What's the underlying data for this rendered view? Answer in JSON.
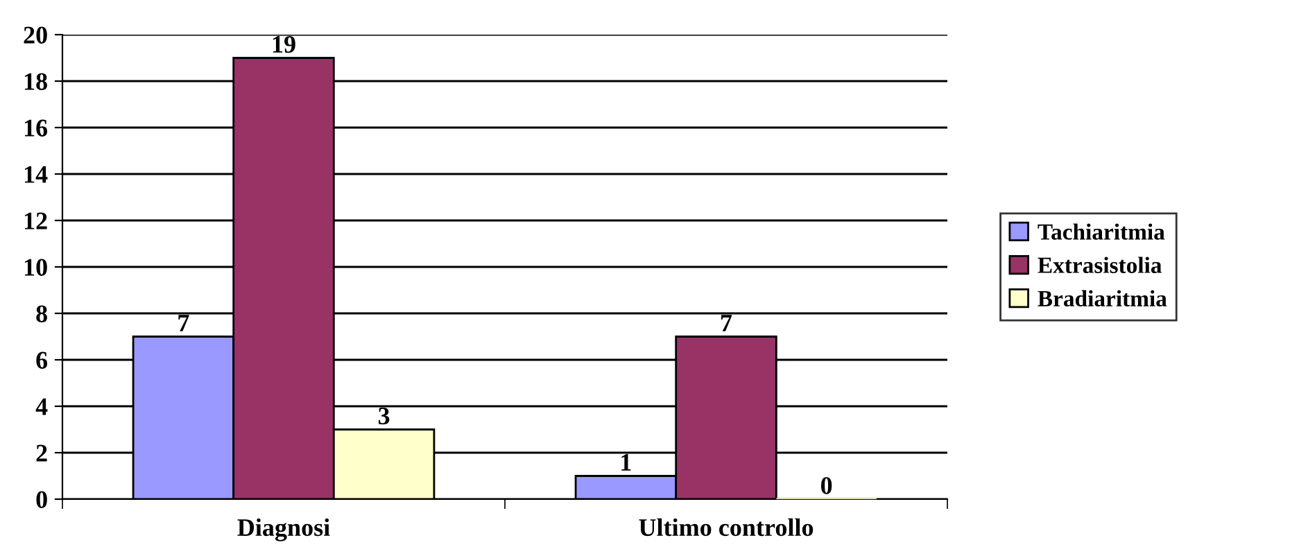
{
  "chart_data": {
    "type": "bar",
    "categories": [
      "Diagnosi",
      "Ultimo controllo"
    ],
    "series": [
      {
        "name": "Tachiaritmia",
        "color": "#9999ff",
        "values": [
          7,
          1
        ]
      },
      {
        "name": "Extrasistolia",
        "color": "#993366",
        "values": [
          19,
          7
        ]
      },
      {
        "name": "Bradiaritmia",
        "color": "#ffffcc",
        "values": [
          3,
          0
        ]
      }
    ],
    "ylim": [
      0,
      20
    ],
    "yticks": [
      0,
      2,
      4,
      6,
      8,
      10,
      12,
      14,
      16,
      18,
      20
    ],
    "grid": "y",
    "legend": "right",
    "data_labels": true
  }
}
